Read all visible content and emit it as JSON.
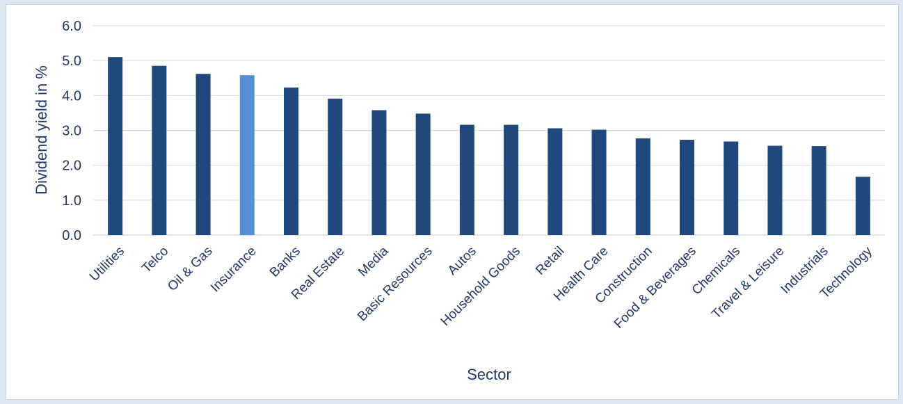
{
  "chart_data": {
    "type": "bar",
    "title": "",
    "xlabel": "Sector",
    "ylabel": "Dividend yield in %",
    "ylim": [
      0,
      6
    ],
    "yticks": [
      "0.0",
      "1.0",
      "2.0",
      "3.0",
      "4.0",
      "5.0",
      "6.0"
    ],
    "grid": true,
    "legend": "none",
    "categories": [
      "Utilities",
      "Telco",
      "Oil & Gas",
      "Insurance",
      "Banks",
      "Real Estate",
      "Media",
      "Basic Resources",
      "Autos",
      "Household Goods",
      "Retail",
      "Health Care",
      "Construction",
      "Food & Beverages",
      "Chemicals",
      "Travel & Leisure",
      "Industrials",
      "Technology"
    ],
    "values": [
      5.1,
      4.85,
      4.62,
      4.58,
      4.23,
      3.91,
      3.58,
      3.48,
      3.16,
      3.16,
      3.06,
      3.02,
      2.77,
      2.73,
      2.68,
      2.56,
      2.55,
      1.67
    ],
    "highlight_category": "Insurance",
    "colors": {
      "bar": "#1f497d",
      "highlight": "#558ed5",
      "grid": "#d9d9d9",
      "text": "#1f3864",
      "background": "#dde7f3"
    }
  }
}
